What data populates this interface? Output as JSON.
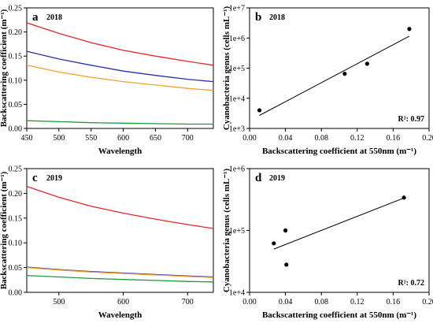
{
  "chart_data": [
    {
      "panel": "a",
      "type": "line",
      "annotation": "2018",
      "xlabel": "Wavelength",
      "ylabel": "Backscattering coefficient (m⁻¹)",
      "xlim": [
        450,
        740
      ],
      "ylim": [
        0,
        0.25
      ],
      "xticks": [
        450,
        500,
        550,
        600,
        650,
        700
      ],
      "yticks": [
        0.0,
        0.05,
        0.1,
        0.15,
        0.2,
        0.25
      ],
      "yticklabels": [
        "0.00",
        "0.05",
        "0.10",
        "0.15",
        "0.20",
        "0.25"
      ],
      "x": [
        450,
        500,
        550,
        600,
        650,
        700,
        740
      ],
      "series": [
        {
          "color": "#e8262a",
          "values": [
            0.219,
            0.197,
            0.178,
            0.162,
            0.15,
            0.139,
            0.131
          ]
        },
        {
          "color": "#2a2fa6",
          "values": [
            0.16,
            0.144,
            0.131,
            0.119,
            0.11,
            0.102,
            0.097
          ]
        },
        {
          "color": "#f5a02a",
          "values": [
            0.131,
            0.117,
            0.106,
            0.097,
            0.09,
            0.083,
            0.079
          ]
        },
        {
          "color": "#1e9a3a",
          "values": [
            0.016,
            0.014,
            0.012,
            0.011,
            0.01,
            0.009,
            0.009
          ]
        }
      ]
    },
    {
      "panel": "b",
      "type": "scatter",
      "annotation": "2018",
      "xlabel": "Backscattering coefficient at 550nm (m⁻¹)",
      "ylabel": "Cyanobacteria genus (cells mL⁻¹)",
      "yscale": "log",
      "xlim": [
        0,
        0.2
      ],
      "ylim": [
        1000,
        10000000
      ],
      "xticks": [
        0.0,
        0.04,
        0.08,
        0.12,
        0.16,
        0.2
      ],
      "xticklabels": [
        "0.00",
        "0.04",
        "0.08",
        "0.12",
        "0.16",
        "0.20"
      ],
      "yticks": [
        1000,
        10000,
        100000,
        1000000,
        10000000
      ],
      "yticklabels": [
        "1e+3",
        "1e+4",
        "1e+5",
        "1e+6",
        "1e+7"
      ],
      "points": [
        {
          "x": 0.011,
          "y": 4000
        },
        {
          "x": 0.106,
          "y": 65000
        },
        {
          "x": 0.131,
          "y": 140000
        },
        {
          "x": 0.178,
          "y": 2000000
        }
      ],
      "fit": {
        "x": [
          0.011,
          0.178
        ],
        "y": [
          2700,
          1150000
        ]
      },
      "r2_label": "R²: 0.97"
    },
    {
      "panel": "c",
      "type": "line",
      "annotation": "2019",
      "xlabel": "Wavelength",
      "ylabel": "Backscattering coefficient (m⁻¹)",
      "xlim": [
        450,
        740
      ],
      "ylim": [
        0,
        0.25
      ],
      "xticks": [
        500,
        600,
        700
      ],
      "yticks": [
        0.0,
        0.05,
        0.1,
        0.15,
        0.2,
        0.25
      ],
      "yticklabels": [
        "0.00",
        "0.05",
        "0.10",
        "0.15",
        "0.20",
        "0.25"
      ],
      "x": [
        450,
        500,
        550,
        600,
        650,
        700,
        740
      ],
      "series": [
        {
          "color": "#e8262a",
          "values": [
            0.214,
            0.192,
            0.174,
            0.16,
            0.148,
            0.137,
            0.129
          ]
        },
        {
          "color": "#2a2fa6",
          "values": [
            0.051,
            0.046,
            0.042,
            0.039,
            0.036,
            0.033,
            0.031
          ]
        },
        {
          "color": "#f5a02a",
          "values": [
            0.05,
            0.045,
            0.041,
            0.038,
            0.035,
            0.032,
            0.03
          ]
        },
        {
          "color": "#1e9a3a",
          "values": [
            0.034,
            0.031,
            0.028,
            0.026,
            0.024,
            0.022,
            0.021
          ]
        }
      ]
    },
    {
      "panel": "d",
      "type": "scatter",
      "annotation": "2019",
      "xlabel": "Backscattering coefficient at 550nm (m⁻¹)",
      "ylabel": "Cyanobacteria genus (cells mL⁻¹)",
      "yscale": "log",
      "xlim": [
        0,
        0.2
      ],
      "ylim": [
        10000,
        1000000
      ],
      "xticks": [
        0.0,
        0.04,
        0.08,
        0.12,
        0.16,
        0.2
      ],
      "xticklabels": [
        "0.00",
        "0.04",
        "0.08",
        "0.12",
        "0.16",
        "0.20"
      ],
      "yticks": [
        10000,
        100000,
        1000000
      ],
      "yticklabels": [
        "1e+4",
        "1e+5",
        "1e+6"
      ],
      "points": [
        {
          "x": 0.027,
          "y": 62000
        },
        {
          "x": 0.04,
          "y": 100000
        },
        {
          "x": 0.041,
          "y": 28000
        },
        {
          "x": 0.172,
          "y": 340000
        }
      ],
      "fit": {
        "x": [
          0.027,
          0.172
        ],
        "y": [
          50000,
          335000
        ]
      },
      "r2_label": "R²: 0.72"
    }
  ]
}
